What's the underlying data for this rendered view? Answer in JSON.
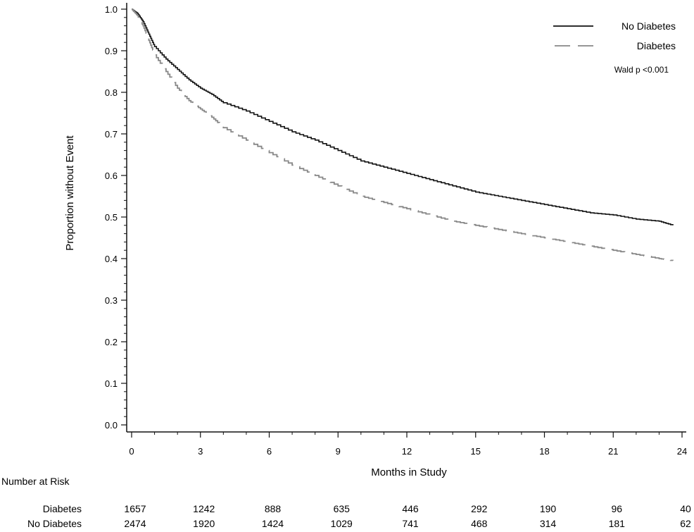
{
  "chart_data": {
    "type": "line",
    "title": "",
    "xlabel": "Months in Study",
    "ylabel": "Proportion without Event",
    "xlim": [
      0,
      24
    ],
    "ylim": [
      0,
      1.0
    ],
    "xticks": [
      0,
      3,
      6,
      9,
      12,
      15,
      18,
      21,
      24
    ],
    "xtick_labels": [
      "0",
      "3",
      "6",
      "9",
      "12",
      "15",
      "18",
      "21",
      "24"
    ],
    "yticks": [
      0,
      0.1,
      0.2,
      0.3,
      0.4,
      0.5,
      0.6,
      0.7,
      0.8,
      0.9,
      1.0
    ],
    "ytick_labels": [
      "0.0",
      "0.1",
      "0.2",
      "0.3",
      "0.4",
      "0.5",
      "0.6",
      "0.7",
      "0.8",
      "0.9",
      "1.0"
    ],
    "grid": false,
    "legend_position": "top-right",
    "annotation": "Wald p <0.001",
    "series": [
      {
        "name": "No Diabetes",
        "style": "solid",
        "color": "#111111",
        "x": [
          0,
          0.25,
          0.5,
          0.75,
          1,
          1.5,
          2,
          2.5,
          3,
          3.5,
          4,
          5,
          6,
          7,
          8,
          9,
          10,
          11,
          12,
          13,
          14,
          15,
          16,
          17,
          18,
          19,
          20,
          21,
          22,
          23,
          23.6
        ],
        "values": [
          1.0,
          0.99,
          0.97,
          0.94,
          0.91,
          0.88,
          0.855,
          0.83,
          0.81,
          0.795,
          0.775,
          0.755,
          0.73,
          0.705,
          0.685,
          0.66,
          0.635,
          0.62,
          0.605,
          0.59,
          0.575,
          0.56,
          0.55,
          0.54,
          0.53,
          0.52,
          0.51,
          0.505,
          0.495,
          0.49,
          0.48
        ]
      },
      {
        "name": "Diabetes",
        "style": "dashed",
        "color": "#888888",
        "x": [
          0,
          0.25,
          0.5,
          0.75,
          1,
          1.5,
          2,
          2.5,
          3,
          3.5,
          4,
          5,
          6,
          7,
          8,
          9,
          10,
          11,
          12,
          13,
          14,
          15,
          16,
          17,
          18,
          19,
          20,
          21,
          22,
          23,
          23.6
        ],
        "values": [
          1.0,
          0.985,
          0.96,
          0.925,
          0.89,
          0.85,
          0.81,
          0.78,
          0.76,
          0.74,
          0.715,
          0.685,
          0.655,
          0.625,
          0.6,
          0.575,
          0.55,
          0.535,
          0.52,
          0.505,
          0.49,
          0.48,
          0.47,
          0.46,
          0.45,
          0.44,
          0.43,
          0.42,
          0.41,
          0.4,
          0.395
        ]
      }
    ],
    "risk_table": {
      "title": "Number at Risk",
      "rows": [
        {
          "label": "Diabetes",
          "values": [
            "1657",
            "1242",
            "888",
            "635",
            "446",
            "292",
            "190",
            "96",
            "40"
          ]
        },
        {
          "label": "No Diabetes",
          "values": [
            "2474",
            "1920",
            "1424",
            "1029",
            "741",
            "468",
            "314",
            "181",
            "62"
          ]
        }
      ]
    }
  }
}
